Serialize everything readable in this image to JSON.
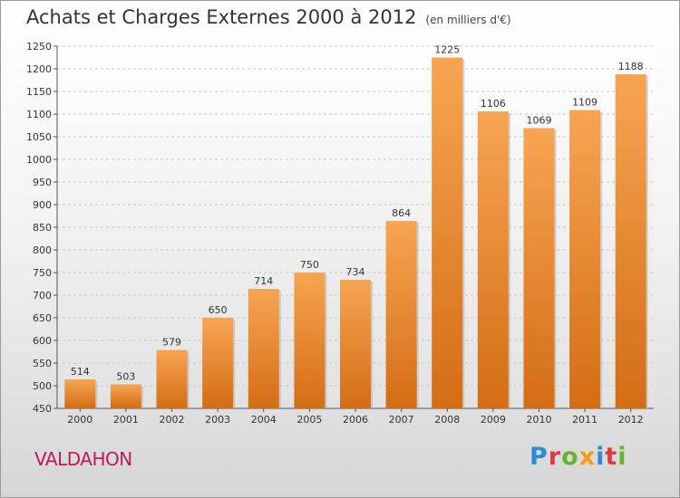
{
  "page": {
    "title": "Achats et Charges Externes 2000 à 2012",
    "subtitle": "(en milliers d'€)",
    "town": "VALDAHON",
    "logo": {
      "letters": [
        "P",
        "r",
        "o",
        "x",
        "i",
        "t",
        "i"
      ],
      "colors": [
        "#2e8bd6",
        "#e03c3c",
        "#6ab42d",
        "#f39c12",
        "#2e8bd6",
        "#e03c3c",
        "#6ab42d"
      ]
    }
  },
  "chart_data": {
    "type": "bar",
    "title": "Achats et Charges Externes 2000 à 2012",
    "subtitle": "(en milliers d'€)",
    "categories": [
      "2000",
      "2001",
      "2002",
      "2003",
      "2004",
      "2005",
      "2006",
      "2007",
      "2008",
      "2009",
      "2010",
      "2011",
      "2012"
    ],
    "values": [
      514,
      503,
      579,
      650,
      714,
      750,
      734,
      864,
      1225,
      1106,
      1069,
      1109,
      1188
    ],
    "ylim": [
      450,
      1250
    ],
    "yticks": [
      450,
      500,
      550,
      600,
      650,
      700,
      750,
      800,
      850,
      900,
      950,
      1000,
      1050,
      1100,
      1150,
      1200,
      1250
    ],
    "grid": true,
    "bar_color": "#f0943a"
  }
}
